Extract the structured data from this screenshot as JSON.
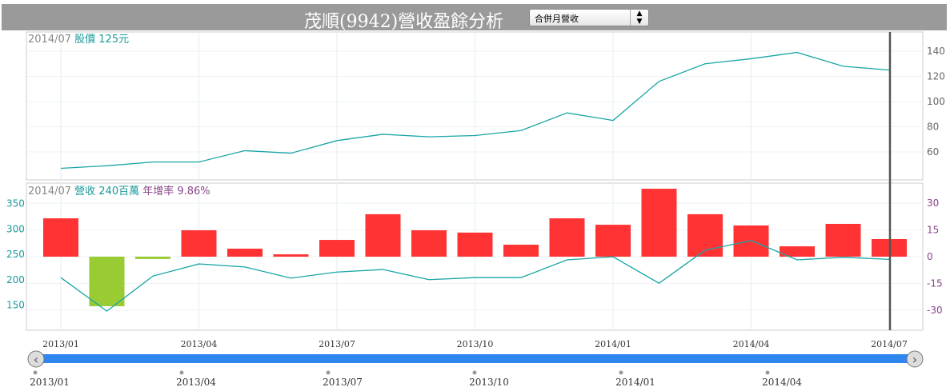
{
  "header": {
    "title": "茂順(9942)營收盈餘分析",
    "select_value": "合併月營收"
  },
  "colors": {
    "price_line": "#1aa5a5",
    "revenue_line": "#1aa5a5",
    "bar_positive": "#ff3333",
    "bar_negative": "#99cc33",
    "navigator": "#2f86ee",
    "cursor": "#555555"
  },
  "top_legend": {
    "date": "2014/07",
    "label": "股價 125元"
  },
  "bottom_legend": {
    "date": "2014/07",
    "revenue": "營收 240百萬",
    "yoy": "年增率 9.86%"
  },
  "chart_data": [
    {
      "type": "line",
      "title": "",
      "months": [
        "2013/01",
        "2013/02",
        "2013/03",
        "2013/04",
        "2013/05",
        "2013/06",
        "2013/07",
        "2013/08",
        "2013/09",
        "2013/10",
        "2013/11",
        "2013/12",
        "2014/01",
        "2014/02",
        "2014/03",
        "2014/04",
        "2014/05",
        "2014/06",
        "2014/07"
      ],
      "values": [
        47,
        49,
        52,
        52,
        61,
        59,
        69,
        74,
        72,
        73,
        77,
        91,
        85,
        116,
        130,
        134,
        139,
        128,
        125
      ],
      "y_ticks": [
        60,
        80,
        100,
        120,
        140
      ],
      "ylim": [
        40,
        155
      ],
      "y_axis": "right"
    },
    {
      "type": "bar+line",
      "bars": {
        "values": [
          21.5,
          -27.8,
          -1.3,
          14.8,
          4.5,
          1.3,
          9.4,
          23.8,
          14.8,
          13.5,
          6.7,
          21.5,
          17.9,
          38.1,
          23.8,
          17.5,
          5.8,
          18.4,
          9.86
        ],
        "y_ticks": [
          -30,
          -15,
          0,
          15,
          30
        ],
        "ylim": [
          -42,
          42
        ],
        "y_axis": "right"
      },
      "line": {
        "values": [
          204,
          138,
          207,
          231,
          225,
          203,
          215,
          220,
          200,
          204,
          204,
          239,
          245,
          193,
          258,
          277,
          239,
          244,
          240
        ],
        "y_ticks": [
          150,
          200,
          250,
          300,
          350
        ],
        "ylim": [
          96,
          388
        ],
        "y_axis": "left"
      }
    },
    {
      "x_ticks": [
        "2013/01",
        "2013/04",
        "2013/07",
        "2013/10",
        "2014/01",
        "2014/04",
        "2014/07"
      ]
    }
  ],
  "navigator": {
    "labels": [
      "2013/01",
      "2013/04",
      "2013/07",
      "2013/10",
      "2014/01",
      "2014/04"
    ]
  }
}
